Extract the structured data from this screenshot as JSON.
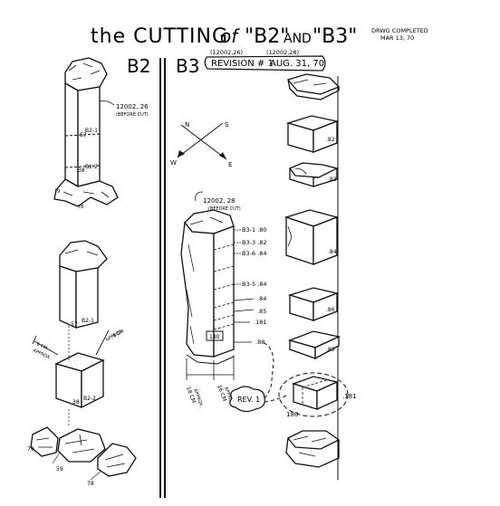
{
  "title": {
    "prefix": "the CUTTING",
    "of": "of",
    "b2": "\"B2\"",
    "and": "AND",
    "b3": "\"B3\"",
    "completed_line1": "DRWG COMPLETED",
    "completed_line2": "MAR 13, 70"
  },
  "revision": {
    "label": "REVISION # 1",
    "date": "AUG. 31, 70",
    "ref_left": "(12002,26)",
    "ref_right": "(12002,28)"
  },
  "b2_panel": {
    "heading": "B2",
    "ref": "12002, 26",
    "before_cut": "(BEFORE CUT)",
    "labels": {
      "b2_1": "B2-1",
      "b2_2": "B2-2",
      "n57": "57",
      "n38": "38",
      "n79": "79",
      "n78": "78",
      "n59": "59",
      "approx_left": "APPROX.",
      "approx_right": "APPROX.",
      "cm_left": "6 CM",
      "cm_right": "6 CM"
    }
  },
  "compass": {
    "n": "N",
    "s": "S",
    "e": "E",
    "w": "W"
  },
  "b3_panel": {
    "heading": "B3",
    "ref": "12002, 28",
    "before_cut": "(BEFORE CUT)",
    "callouts": [
      "B3-1 .80",
      "B3-3 .82",
      "B3-6 .84",
      "B3-5 .84",
      ".84",
      ".85",
      ".181",
      ".88"
    ],
    "labels": {
      "n180": "180",
      "approx_left": "APPROX.",
      "approx_right": "APPROX.",
      "cm_left": "18 CM",
      "cm_right": "16 CM",
      "rev": "REV. 1"
    }
  },
  "pieces": {
    "labels": [
      ".82",
      ".83",
      ".84",
      ".86",
      ".85",
      ".181",
      "180"
    ]
  }
}
